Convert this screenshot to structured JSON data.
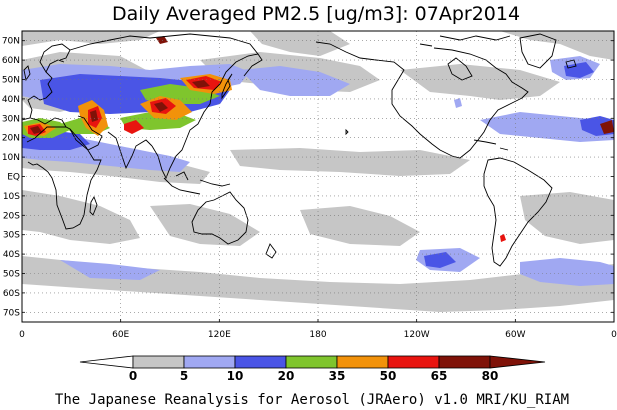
{
  "title": "Daily Averaged PM2.5 [ug/m3]: 07Apr2014",
  "footer": "The Japanese Reanalysis for Aerosol (JRAero) v1.0 MRI/KU_RIAM",
  "map": {
    "lon_range": [
      0,
      360
    ],
    "lat_range": [
      -75,
      75
    ],
    "lat_ticks": [
      "70N",
      "60N",
      "50N",
      "40N",
      "30N",
      "20N",
      "10N",
      "EQ",
      "10S",
      "20S",
      "30S",
      "40S",
      "50S",
      "60S",
      "70S"
    ],
    "lat_values": [
      70,
      60,
      50,
      40,
      30,
      20,
      10,
      0,
      -10,
      -20,
      -30,
      -40,
      -50,
      -60,
      -70
    ],
    "lon_ticks": [
      "0",
      "60E",
      "120E",
      "180",
      "120W",
      "60W",
      "0"
    ],
    "lon_values": [
      0,
      60,
      120,
      180,
      240,
      300,
      360
    ],
    "grid": "dotted"
  },
  "legend": {
    "labels": [
      "0",
      "5",
      "10",
      "20",
      "35",
      "50",
      "65",
      "80"
    ],
    "colors": [
      "#ffffff",
      "#c6c6c6",
      "#a0a8f2",
      "#4a55e6",
      "#7fc52d",
      "#f2920a",
      "#e8140f",
      "#7f1208"
    ]
  }
}
